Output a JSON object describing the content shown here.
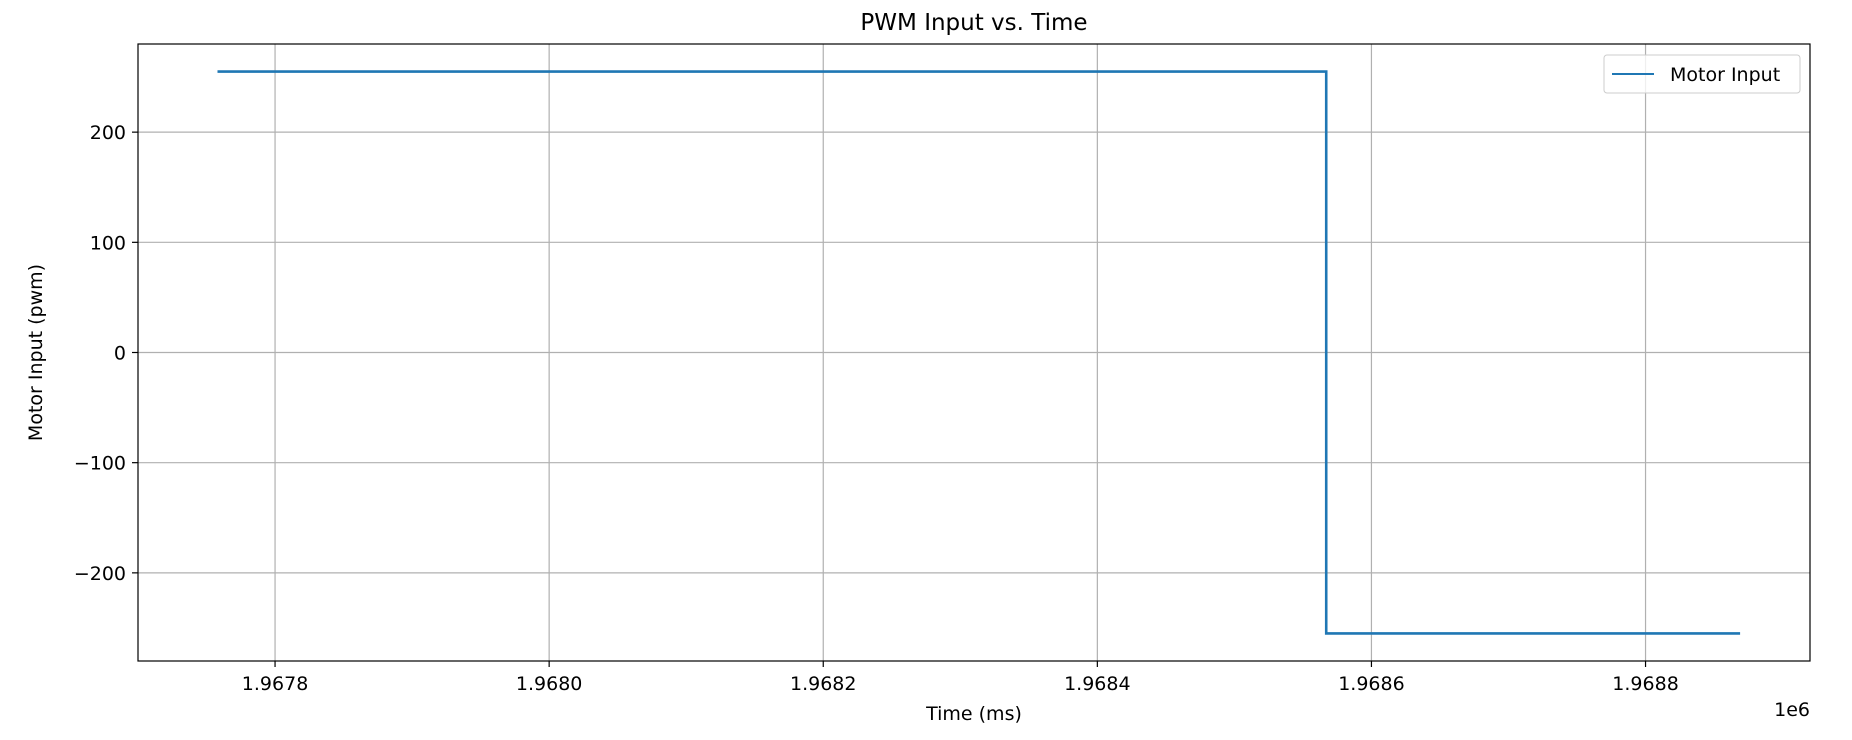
{
  "chart_data": {
    "type": "line",
    "title": "PWM Input vs. Time",
    "xlabel": "Time (ms)",
    "ylabel": "Motor Input (pwm)",
    "x_offset_label": "1e6",
    "xlim": [
      1.9677,
      1.96892
    ],
    "ylim": [
      -280,
      280
    ],
    "x_ticks": [
      1.9678,
      1.968,
      1.9682,
      1.9684,
      1.9686,
      1.9688
    ],
    "x_tick_labels": [
      "1.9678",
      "1.9680",
      "1.9682",
      "1.9684",
      "1.9686",
      "1.9688"
    ],
    "y_ticks": [
      -200,
      -100,
      0,
      100,
      200
    ],
    "y_tick_labels": [
      "−200",
      "−100",
      "0",
      "100",
      "200"
    ],
    "grid": true,
    "legend_position": "top-right",
    "series": [
      {
        "name": "Motor Input",
        "color": "#1f77b4",
        "x": [
          1.967758,
          1.968567,
          1.968567,
          1.968869
        ],
        "y": [
          255,
          255,
          -255,
          -255
        ]
      }
    ]
  }
}
